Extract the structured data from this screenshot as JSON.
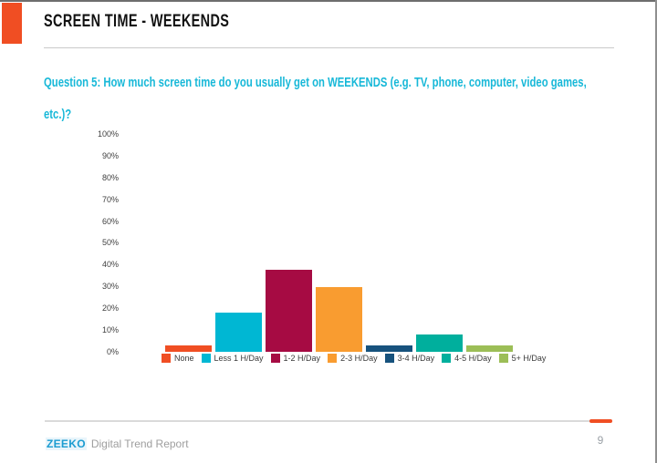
{
  "header": {
    "title": "SCREEN TIME - WEEKENDS"
  },
  "question": {
    "line1": "Question 5: How much screen time do you usually get on WEEKENDS (e.g. TV, phone, computer, video games,",
    "line2": "etc.)?",
    "color": "#17B8D8"
  },
  "chart_data": {
    "type": "bar",
    "title": "",
    "xlabel": "",
    "ylabel": "",
    "categories": [
      "None",
      "Less 1 H/Day",
      "1-2 H/Day",
      "2-3 H/Day",
      "3-4 H/Day",
      "4-5 H/Day",
      "5+ H/Day"
    ],
    "values": [
      3,
      18,
      38,
      30,
      3,
      8,
      3
    ],
    "unit": "%",
    "colors": [
      "#F04E23",
      "#00B7D3",
      "#A60B43",
      "#F99C30",
      "#17527D",
      "#00AF9D",
      "#9CBE57"
    ],
    "y_ticks": [
      "100%",
      "90%",
      "80%",
      "70%",
      "60%",
      "50%",
      "40%",
      "30%",
      "20%",
      "10%",
      "0%"
    ],
    "ylim": [
      0,
      100
    ],
    "grid": false,
    "legend_position": "bottom"
  },
  "footer": {
    "brand": "ZEEKO",
    "report_name": "Digital Trend Report",
    "page_number": "9",
    "accent_color": "#F04E23"
  }
}
